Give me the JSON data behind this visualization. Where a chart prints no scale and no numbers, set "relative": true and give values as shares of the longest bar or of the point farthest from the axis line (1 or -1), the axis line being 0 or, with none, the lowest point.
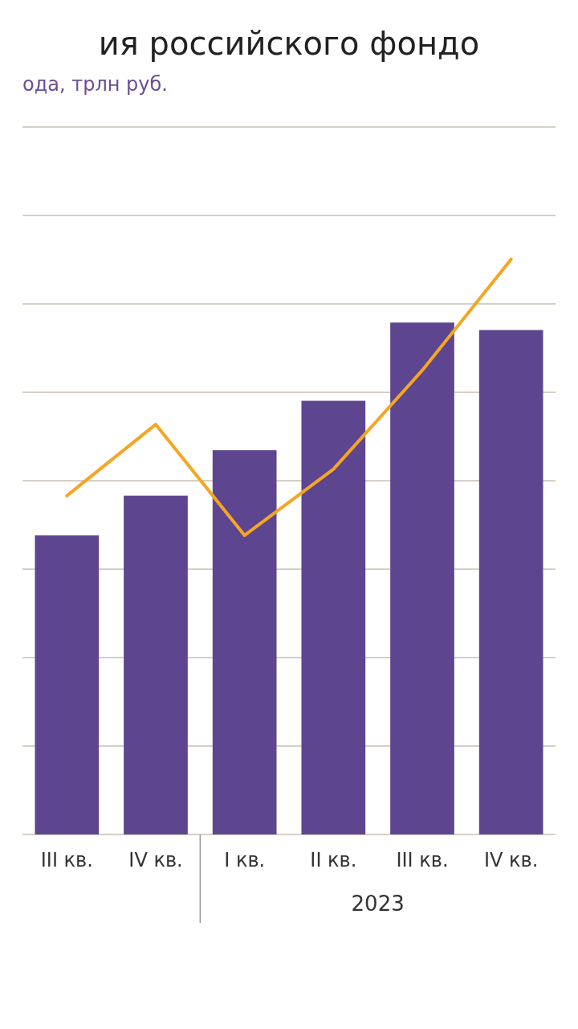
{
  "chart_data": {
    "type": "bar",
    "title": "ия российского фондо",
    "subtitle": "ода, трлн руб.",
    "relative": true,
    "grid": "y",
    "categories": [
      "III кв.",
      "IV кв.",
      "I кв.",
      "II кв.",
      "III кв.",
      "IV кв."
    ],
    "series": [
      {
        "color": "#5e4590",
        "values": [
          0.52,
          0.589,
          0.668,
          0.754,
          0.89,
          0.877
        ]
      },
      {
        "type": "line",
        "color": "#f5a623",
        "values": [
          0.589,
          0.713,
          0.52,
          0.635,
          0.807,
          1.0
        ]
      }
    ],
    "annotations": [
      "2023"
    ]
  }
}
